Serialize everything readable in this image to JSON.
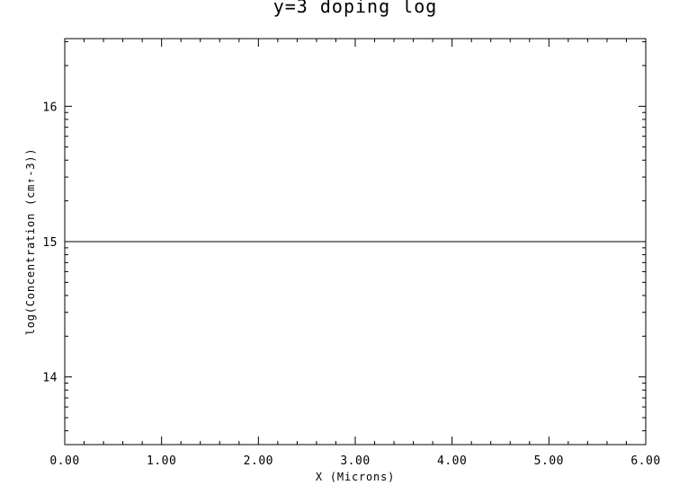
{
  "chart_data": {
    "type": "line",
    "title": "y=3 doping log",
    "xlabel": "X (Microns)",
    "ylabel": "log(Concentration (cm↑-3))",
    "xlim": [
      0,
      6
    ],
    "ylim": [
      13.5,
      16.5
    ],
    "x_tick_labels": [
      "0.00",
      "1.00",
      "2.00",
      "3.00",
      "4.00",
      "5.00",
      "6.00"
    ],
    "x_ticks": [
      0,
      1,
      2,
      3,
      4,
      5,
      6
    ],
    "y_tick_labels": [
      "14",
      "15",
      "16"
    ],
    "y_ticks": [
      14,
      15,
      16
    ],
    "grid": false,
    "series": [
      {
        "x": [
          0,
          6
        ],
        "y": [
          15,
          15
        ],
        "color": "#000000"
      }
    ]
  }
}
